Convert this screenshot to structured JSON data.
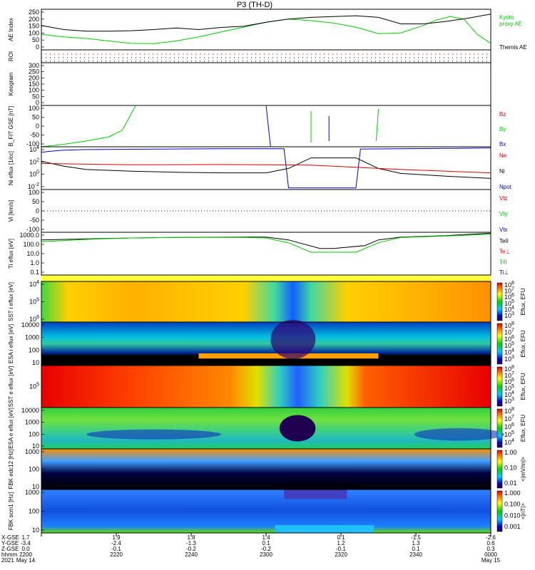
{
  "title": "P3 (TH-D)",
  "colors": {
    "kyoto": "#00cc00",
    "themis": "#000000",
    "bz": "#dd0000",
    "by": "#00cc00",
    "bx": "#0000cc",
    "ne": "#dd0000",
    "ni": "#000000",
    "npot": "#0000cc"
  },
  "chart_data": [
    {
      "type": "line",
      "panel": "AE Index",
      "ylabel": "AE Index",
      "ylim": [
        0,
        250
      ],
      "yticks": [
        "250",
        "200",
        "150",
        "100",
        "50",
        "0"
      ],
      "legend": [
        "Kyoto proxy AE",
        "Themis AE"
      ],
      "series": [
        {
          "name": "Kyoto proxy AE",
          "x": [
            0,
            0.05,
            0.1,
            0.15,
            0.2,
            0.25,
            0.3,
            0.35,
            0.4,
            0.45,
            0.5,
            0.55,
            0.6,
            0.65,
            0.7,
            0.75,
            0.8,
            0.85,
            0.88,
            0.91,
            0.94,
            0.97,
            1.0
          ],
          "y": [
            95,
            80,
            70,
            55,
            40,
            38,
            55,
            80,
            110,
            140,
            170,
            190,
            180,
            165,
            140,
            100,
            105,
            150,
            185,
            205,
            190,
            95,
            40
          ]
        },
        {
          "name": "Themis AE",
          "x": [
            0,
            0.05,
            0.1,
            0.15,
            0.2,
            0.25,
            0.3,
            0.35,
            0.4,
            0.45,
            0.5,
            0.55,
            0.6,
            0.65,
            0.7,
            0.75,
            0.8,
            0.85,
            0.9,
            0.95,
            1.0
          ],
          "y": [
            150,
            125,
            115,
            115,
            118,
            125,
            135,
            125,
            138,
            145,
            170,
            190,
            200,
            205,
            210,
            200,
            160,
            160,
            175,
            195,
            220
          ]
        }
      ]
    },
    {
      "type": "line",
      "panel": "ROI",
      "ylabel": "ROI",
      "note": "region-of-interest flags (dotted rows)"
    },
    {
      "type": "line",
      "panel": "keogram",
      "ylabel": "Keogram",
      "ylim": [
        0,
        300
      ],
      "yticks": [
        "300",
        "250",
        "200",
        "150",
        "100",
        "50",
        "0"
      ]
    },
    {
      "type": "line",
      "panel": "B FIT",
      "ylabel": "B_FIT GSE [nT]",
      "ylim": [
        -100,
        100
      ],
      "yticks": [
        "100",
        "50",
        "0",
        "-50",
        "-100"
      ],
      "legend": [
        "Bz",
        "By",
        "Bx"
      ],
      "series": [
        {
          "name": "By",
          "x": [
            0,
            0.05,
            0.1,
            0.15,
            0.18,
            0.21
          ],
          "y": [
            -100,
            -88,
            -72,
            -52,
            -20,
            100
          ]
        },
        {
          "name": "Bx",
          "x": [
            0.5,
            0.51
          ],
          "y": [
            100,
            -100
          ]
        }
      ]
    },
    {
      "type": "line",
      "panel": "Ni",
      "ylabel": "Ni eflux [1/cc]",
      "yticks": [
        "10^4",
        "10^2",
        "10^0",
        "10^-2"
      ],
      "legend": [
        "Ne",
        "Ni",
        "Npot"
      ],
      "series": [
        {
          "name": "Npot",
          "x": [
            0,
            0.02,
            0.05,
            0.1,
            0.2,
            0.3,
            0.4,
            0.5,
            0.54,
            0.55,
            0.7,
            0.71,
            0.8,
            0.9,
            1.0
          ],
          "y": [
            3.4,
            3.6,
            3.8,
            3.9,
            3.95,
            4.0,
            4.05,
            4.05,
            4.05,
            -3,
            -3,
            4.0,
            4.05,
            4.1,
            4.2
          ]
        },
        {
          "name": "Ni",
          "x": [
            0,
            0.05,
            0.1,
            0.2,
            0.3,
            0.4,
            0.5,
            0.55,
            0.6,
            0.7,
            0.75,
            0.8,
            0.9,
            1.0
          ],
          "y": [
            1.8,
            0.9,
            0.3,
            0.0,
            -0.2,
            -0.3,
            -0.3,
            0.5,
            2.4,
            2.4,
            0.5,
            -0.4,
            -0.9,
            -1.3
          ]
        },
        {
          "name": "Ne",
          "x": [
            0,
            0.2,
            0.4,
            0.6,
            0.8,
            1.0
          ],
          "y": [
            1.4,
            1.15,
            1.2,
            1.1,
            0.3,
            -0.3
          ]
        }
      ]
    },
    {
      "type": "line",
      "panel": "Vi",
      "ylabel": "Vi [km/s]",
      "ylim": [
        -100,
        100
      ],
      "yticks": [
        "100",
        "50",
        "0",
        "-50",
        "-100"
      ],
      "legend": [
        "Vtz",
        "Vty",
        "Vtx"
      ]
    },
    {
      "type": "line",
      "panel": "Ti",
      "ylabel": "Ti eflux [eV]",
      "yticks": [
        "1000.0",
        "100.0",
        "10.0",
        "1.0",
        "0.1"
      ],
      "legend": [
        "TeII",
        "Te⊥",
        "TiII",
        "Ti⊥"
      ],
      "series": [
        {
          "name": "TeII",
          "x": [
            0,
            0.1,
            0.2,
            0.3,
            0.45,
            0.5,
            0.55,
            0.62,
            0.65,
            0.72,
            0.75,
            0.8,
            0.9,
            1.0
          ],
          "y": [
            2.5,
            2.6,
            2.7,
            2.75,
            2.8,
            2.8,
            2.5,
            1.6,
            1.6,
            1.9,
            2.5,
            2.8,
            2.95,
            3.2
          ]
        },
        {
          "name": "TiII",
          "x": [
            0,
            0.1,
            0.2,
            0.3,
            0.45,
            0.5,
            0.55,
            0.6,
            0.7,
            0.75,
            0.8,
            0.9,
            1.0
          ],
          "y": [
            2.3,
            2.55,
            2.7,
            2.75,
            2.75,
            2.7,
            2.2,
            1.2,
            1.2,
            2.2,
            2.75,
            2.9,
            3.1
          ]
        }
      ]
    },
    {
      "type": "heatmap",
      "panel": "SST ion",
      "ylabel": "SST i eflux [eV]",
      "yticks": [
        "10^4",
        "10^5",
        "10^6"
      ],
      "colorbar": [
        "10^8",
        "10^7",
        "10^6",
        "10^5",
        "10^4",
        "10^3"
      ],
      "colorbar_label": "Eflux, EFU"
    },
    {
      "type": "heatmap",
      "panel": "ESA ion",
      "ylabel": "ESA i eflux [eV]",
      "yticks": [
        "10000",
        "1000",
        "100",
        "10"
      ],
      "colorbar": [
        "10^8",
        "10^7",
        "10^6",
        "10^5",
        "10^4",
        "10^3"
      ],
      "colorbar_label": "Eflux, EFU"
    },
    {
      "type": "heatmap",
      "panel": "SST electron",
      "ylabel": "SST e eflux [eV]",
      "yticks": [
        "10^5"
      ],
      "colorbar": [
        "10^8",
        "10^7",
        "10^6",
        "10^5",
        "10^4",
        "10^3"
      ],
      "colorbar_label": "Eflux, EFU"
    },
    {
      "type": "heatmap",
      "panel": "ESA electron",
      "ylabel": "ESA e eflux [eV]",
      "yticks": [
        "10000",
        "1000",
        "100",
        "10"
      ],
      "colorbar": [
        "10^8",
        "10^7",
        "10^6",
        "10^5",
        "10^4"
      ],
      "colorbar_label": "Eflux, EFU"
    },
    {
      "type": "heatmap",
      "panel": "FBK edc12",
      "ylabel": "FBK edc12 [Hz]",
      "yticks": [
        "1000",
        "100",
        "10"
      ],
      "colorbar": [
        "1.00",
        "0.10",
        "0.01"
      ],
      "colorbar_label": "<|mV/m|>"
    },
    {
      "type": "heatmap",
      "panel": "FBK scm1",
      "ylabel": "FBK scm1 [Hz]",
      "yticks": [
        "1000",
        "100",
        "10"
      ],
      "colorbar": [
        "1.000",
        "0.100",
        "0.010",
        "0.001"
      ],
      "colorbar_label": "<|nT|>"
    }
  ],
  "axis": {
    "row_labels": [
      "X-GSE",
      "Y-GSE",
      "Z-GSE",
      "hhmm",
      "2021"
    ],
    "ticks": [
      {
        "x": "1.7",
        "y": "-3.4",
        "z": "0.0",
        "t": "2200",
        "d": "May 14"
      },
      {
        "x": "1.9",
        "y": "-2.4",
        "z": "-0.1",
        "t": "2220",
        "d": ""
      },
      {
        "x": "1.8",
        "y": "-1.3",
        "z": "-0.2",
        "t": "2240",
        "d": ""
      },
      {
        "x": "1.4",
        "y": "0.1",
        "z": "-0.2",
        "t": "2300",
        "d": ""
      },
      {
        "x": "0.1",
        "y": "1.2",
        "z": "-0.1",
        "t": "2320",
        "d": ""
      },
      {
        "x": "-1.5",
        "y": "1.3",
        "z": "0.1",
        "t": "2340",
        "d": ""
      },
      {
        "x": "-2.6",
        "y": "0.6",
        "z": "0.3",
        "t": "0000",
        "d": "May 15"
      }
    ]
  }
}
